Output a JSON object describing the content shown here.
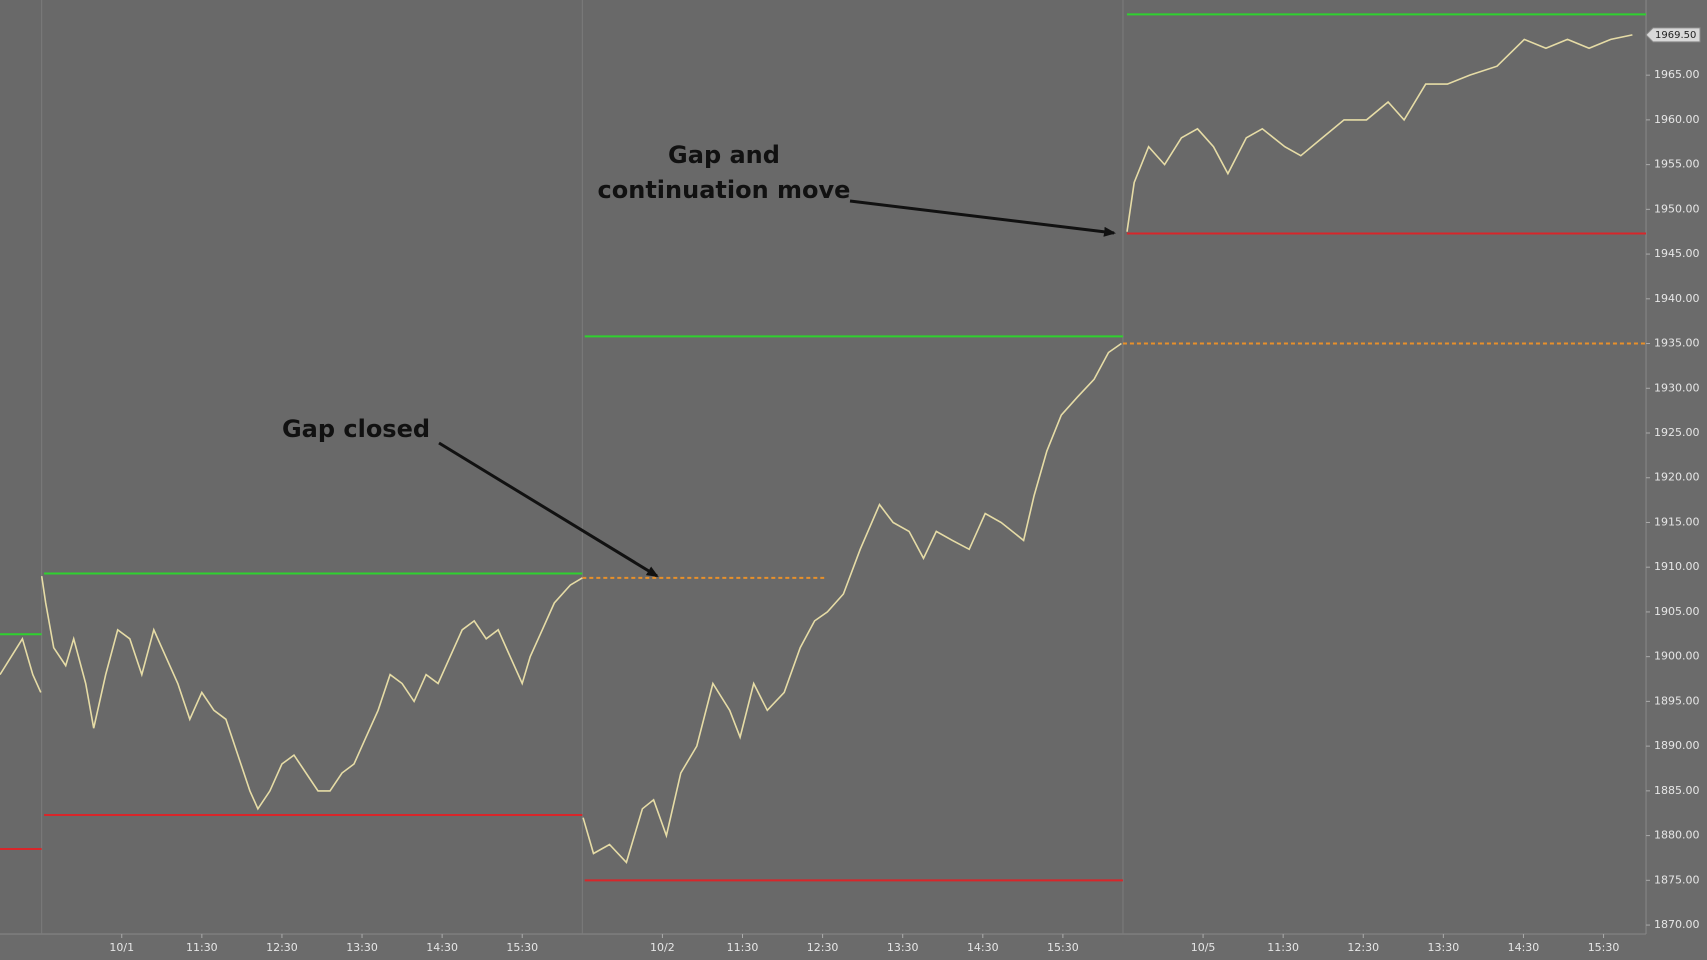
{
  "chart_data": {
    "type": "line",
    "line_color": "#e6dca6",
    "xlim": [
      -0.52,
      20.03
    ],
    "ylim": [
      1869.0,
      1973.4
    ],
    "yticks": [
      {
        "value": 1870,
        "label": "1870.00"
      },
      {
        "value": 1875,
        "label": "1875.00"
      },
      {
        "value": 1880,
        "label": "1880.00"
      },
      {
        "value": 1885,
        "label": "1885.00"
      },
      {
        "value": 1890,
        "label": "1890.00"
      },
      {
        "value": 1895,
        "label": "1895.00"
      },
      {
        "value": 1900,
        "label": "1900.00"
      },
      {
        "value": 1905,
        "label": "1905.00"
      },
      {
        "value": 1910,
        "label": "1910.00"
      },
      {
        "value": 1915,
        "label": "1915.00"
      },
      {
        "value": 1920,
        "label": "1920.00"
      },
      {
        "value": 1925,
        "label": "1925.00"
      },
      {
        "value": 1930,
        "label": "1930.00"
      },
      {
        "value": 1935,
        "label": "1935.00"
      },
      {
        "value": 1940,
        "label": "1940.00"
      },
      {
        "value": 1945,
        "label": "1945.00"
      },
      {
        "value": 1950,
        "label": "1950.00"
      },
      {
        "value": 1955,
        "label": "1955.00"
      },
      {
        "value": 1960,
        "label": "1960.00"
      },
      {
        "value": 1965,
        "label": "1965.00"
      }
    ],
    "xticks": [
      {
        "value": 1,
        "label": "10/1"
      },
      {
        "value": 2,
        "label": "11:30"
      },
      {
        "value": 3,
        "label": "12:30"
      },
      {
        "value": 4,
        "label": "13:30"
      },
      {
        "value": 5,
        "label": "14:30"
      },
      {
        "value": 6,
        "label": "15:30"
      },
      {
        "value": 7.75,
        "label": "10/2"
      },
      {
        "value": 8.75,
        "label": "11:30"
      },
      {
        "value": 9.75,
        "label": "12:30"
      },
      {
        "value": 10.75,
        "label": "13:30"
      },
      {
        "value": 11.75,
        "label": "14:30"
      },
      {
        "value": 12.75,
        "label": "15:30"
      },
      {
        "value": 14.5,
        "label": "10/5"
      },
      {
        "value": 15.5,
        "label": "11:30"
      },
      {
        "value": 16.5,
        "label": "12:30"
      },
      {
        "value": 17.5,
        "label": "13:30"
      },
      {
        "value": 18.5,
        "label": "14:30"
      },
      {
        "value": 19.5,
        "label": "15:30"
      }
    ],
    "session_starts": [
      0,
      6.75,
      13.5
    ],
    "x": [
      -0.52,
      -0.38,
      -0.24,
      -0.11,
      -0.01,
      0,
      0,
      0.05,
      0.15,
      0.3,
      0.4,
      0.55,
      0.65,
      0.8,
      0.95,
      1.1,
      1.25,
      1.4,
      1.55,
      1.7,
      1.85,
      2.0,
      2.15,
      2.3,
      2.45,
      2.6,
      2.7,
      2.85,
      3.0,
      3.15,
      3.3,
      3.45,
      3.6,
      3.75,
      3.9,
      4.05,
      4.2,
      4.35,
      4.5,
      4.65,
      4.8,
      4.95,
      5.1,
      5.25,
      5.4,
      5.55,
      5.7,
      5.85,
      6.0,
      6.1,
      6.25,
      6.4,
      6.6,
      6.75,
      6.75,
      6.76,
      6.89,
      7.09,
      7.3,
      7.5,
      7.64,
      7.8,
      7.98,
      8.18,
      8.38,
      8.59,
      8.72,
      8.89,
      9.06,
      9.27,
      9.47,
      9.65,
      9.81,
      10.01,
      10.22,
      10.46,
      10.63,
      10.83,
      11.01,
      11.17,
      11.37,
      11.58,
      11.78,
      11.98,
      12.26,
      12.39,
      12.55,
      12.73,
      12.93,
      13.14,
      13.32,
      13.48,
      13.5,
      13.55,
      13.64,
      13.82,
      14.02,
      14.23,
      14.43,
      14.63,
      14.81,
      15.04,
      15.24,
      15.52,
      15.72,
      15.99,
      16.26,
      16.54,
      16.81,
      17.01,
      17.28,
      17.55,
      17.83,
      18.17,
      18.51,
      18.78,
      19.05,
      19.32,
      19.59,
      19.86
    ],
    "values": [
      1898,
      1900,
      1902,
      1898,
      1896,
      null,
      1909,
      1906,
      1901,
      1899,
      1902,
      1897,
      1892,
      1898,
      1903,
      1902,
      1898,
      1903,
      1900,
      1897,
      1893,
      1896,
      1894,
      1893,
      1889,
      1885,
      1883,
      1885,
      1888,
      1889,
      1887,
      1885,
      1885,
      1887,
      1888,
      1891,
      1894,
      1898,
      1897,
      1895,
      1898,
      1897,
      1900,
      1903,
      1904,
      1902,
      1903,
      1900,
      1897,
      1900,
      1903,
      1906,
      1908,
      1908.8,
      null,
      1882,
      1878,
      1879,
      1877,
      1883,
      1884,
      1880,
      1887,
      1890,
      1897,
      1894,
      1891,
      1897,
      1894,
      1896,
      1901,
      1904,
      1905,
      1907,
      1912,
      1917,
      1915,
      1914,
      1911,
      1914,
      1913,
      1912,
      1916,
      1915,
      1913,
      1918,
      1923,
      1927,
      1929,
      1931,
      1934,
      1935,
      null,
      1947.5,
      1953,
      1957,
      1955,
      1958,
      1959,
      1957,
      1954,
      1958,
      1959,
      1957,
      1956,
      1958,
      1960,
      1960,
      1962,
      1960,
      1964,
      1964,
      1965,
      1966,
      1969,
      1968,
      1969,
      1968,
      1969,
      1969.5
    ],
    "levels": [
      {
        "value": 1902.5,
        "x0": -0.52,
        "x1": 0,
        "color": "#2fd12f",
        "dashed": false
      },
      {
        "value": 1878.5,
        "x0": -0.52,
        "x1": 0,
        "color": "#d8262a",
        "dashed": false
      },
      {
        "value": 1909.3,
        "x0": 0.03,
        "x1": 6.75,
        "color": "#2fd12f",
        "dashed": false
      },
      {
        "value": 1882.3,
        "x0": 0.03,
        "x1": 6.75,
        "color": "#d8262a",
        "dashed": false
      },
      {
        "value": 1908.8,
        "x0": 6.75,
        "x1": 9.77,
        "color": "#e8902a",
        "dashed": true
      },
      {
        "value": 1935.8,
        "x0": 6.78,
        "x1": 13.5,
        "color": "#2fd12f",
        "dashed": false
      },
      {
        "value": 1875.0,
        "x0": 6.78,
        "x1": 13.5,
        "color": "#d8262a",
        "dashed": false
      },
      {
        "value": 1935.0,
        "x0": 13.5,
        "x1": 20.03,
        "color": "#e8902a",
        "dashed": true
      },
      {
        "value": 1971.8,
        "x0": 13.55,
        "x1": 20.03,
        "color": "#2fd12f",
        "dashed": false
      },
      {
        "value": 1947.3,
        "x0": 13.55,
        "x1": 20.03,
        "color": "#d8262a",
        "dashed": false
      }
    ],
    "last_price": {
      "value": 1969.5,
      "label": "1969.50"
    },
    "annotations": [
      "Gap and",
      "continuation move",
      "Gap closed"
    ]
  }
}
